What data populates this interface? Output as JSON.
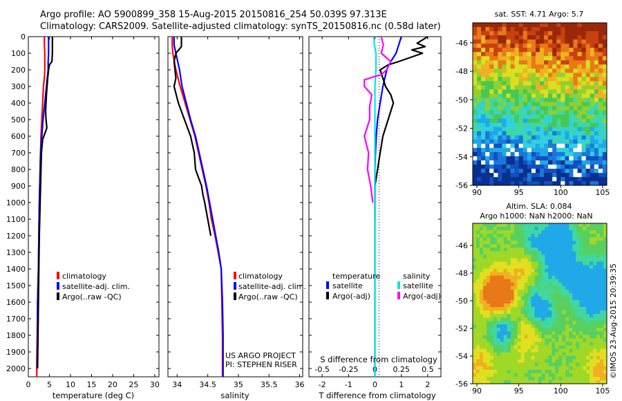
{
  "header": {
    "line1": "Argo profile: AO 5900899_358 15-Aug-2015 20150816_254 50.039S 97.313E",
    "line2": "Climatology: CARS2009. Satellite-adjusted climatology: synTS_20150816.nc (0.58d later)"
  },
  "colors": {
    "climatology": "#ff0000",
    "satellite_adj": "#0000ff",
    "argo": "#000000",
    "salinity_satellite": "#00e5e5",
    "salinity_argo": "#ff00ff"
  },
  "credits": {
    "project": "US ARGO PROJECT",
    "pi": "PI: STEPHEN RISER",
    "imos": "©IMOS 23-Aug-2015 20:39:35"
  },
  "legend_temp": [
    "climatology",
    "satellite-adj. clim.",
    "Argo(..raw -QC)"
  ],
  "legend_sal": [
    "climatology",
    "satellite-adj. clim.",
    "Argo(..raw -QC)"
  ],
  "legend_diff": {
    "col1_title": "temperature",
    "col2_title": "salinity",
    "col1": [
      "satellite",
      "Argo(-adj)"
    ],
    "col2": [
      "satellite",
      "Argo(-adj)"
    ]
  },
  "map_sst": {
    "title": "sat. SST: 4.71 Argo: 5.7",
    "yticks": [
      "-46",
      "-48",
      "-50",
      "-52",
      "-54",
      "-56"
    ],
    "xticks": [
      "90",
      "95",
      "100",
      "105"
    ]
  },
  "map_sla": {
    "title1": "Altim. SLA: 0.084",
    "title2": "Argo h1000: NaN h2000: NaN",
    "yticks": [
      "-46",
      "-48",
      "-50",
      "-52",
      "-54",
      "-56"
    ],
    "xticks": [
      "90",
      "95",
      "100",
      "105"
    ]
  },
  "chart_data": [
    {
      "type": "line",
      "title": "",
      "xlabel": "temperature (deg C)",
      "ylabel": "",
      "xlim": [
        0,
        31
      ],
      "ylim": [
        2050,
        0
      ],
      "xticks": [
        "0",
        "5",
        "10",
        "15",
        "20",
        "25",
        "30"
      ],
      "yticks": [
        "0",
        "100",
        "200",
        "300",
        "400",
        "500",
        "600",
        "700",
        "800",
        "900",
        "1000",
        "1100",
        "1200",
        "1300",
        "1400",
        "1500",
        "1600",
        "1700",
        "1800",
        "1900",
        "2000"
      ],
      "series": [
        {
          "name": "climatology",
          "color": "#ff0000",
          "x": [
            3.8,
            3.8,
            3.9,
            3.9,
            3.9,
            3.8,
            3.6,
            3.4,
            3.2,
            3.0,
            2.9,
            2.8,
            2.7,
            2.6,
            2.5,
            2.4,
            2.3,
            2.2,
            2.1,
            2.0,
            2.0
          ],
          "y": [
            0,
            50,
            100,
            150,
            200,
            250,
            300,
            400,
            500,
            600,
            700,
            800,
            900,
            1000,
            1200,
            1400,
            1500,
            1600,
            1800,
            1950,
            2050
          ]
        },
        {
          "name": "satellite-adj. clim.",
          "color": "#0000ff",
          "x": [
            4.8,
            4.8,
            4.8,
            4.7,
            4.7,
            4.5,
            4.3,
            3.9,
            3.5,
            3.2,
            2.9,
            2.8,
            2.7,
            2.6,
            2.5,
            2.4,
            2.3,
            2.2,
            2.2,
            2.1
          ],
          "y": [
            0,
            50,
            100,
            150,
            200,
            250,
            300,
            400,
            500,
            600,
            700,
            800,
            900,
            1000,
            1200,
            1400,
            1500,
            1600,
            1800,
            2000
          ]
        },
        {
          "name": "Argo(..raw -QC)",
          "color": "#000000",
          "x": [
            5.7,
            5.7,
            5.7,
            5.6,
            5.0,
            4.8,
            4.6,
            4.3,
            4.1,
            4.2,
            4.4,
            3.4,
            3.1,
            3.0,
            2.9,
            2.8,
            2.6,
            2.5,
            2.4,
            2.3,
            2.2
          ],
          "y": [
            0,
            50,
            100,
            150,
            170,
            200,
            250,
            350,
            450,
            500,
            550,
            620,
            700,
            800,
            900,
            1000,
            1200,
            1400,
            1600,
            1800,
            2000
          ]
        }
      ]
    },
    {
      "type": "line",
      "title": "",
      "xlabel": "salinity",
      "ylabel": "",
      "xlim": [
        33.85,
        36.05
      ],
      "ylim": [
        2050,
        0
      ],
      "xticks": [
        "34",
        "34.5",
        "35",
        "35.5",
        "36"
      ],
      "series": [
        {
          "name": "climatology",
          "color": "#ff0000",
          "x": [
            33.92,
            33.92,
            33.93,
            33.98,
            34.05,
            34.13,
            34.21,
            34.29,
            34.35,
            34.41,
            34.47,
            34.52,
            34.56,
            34.62,
            34.67,
            34.72,
            34.73,
            34.74,
            34.74
          ],
          "y": [
            0,
            50,
            100,
            200,
            300,
            400,
            500,
            600,
            700,
            800,
            900,
            1000,
            1100,
            1200,
            1300,
            1400,
            1600,
            1800,
            2050
          ]
        },
        {
          "name": "satellite-adj. clim.",
          "color": "#0000ff",
          "x": [
            33.95,
            33.95,
            33.98,
            34.04,
            34.08,
            34.15,
            34.22,
            34.3,
            34.36,
            34.42,
            34.48,
            34.53,
            34.58,
            34.63,
            34.68,
            34.72,
            34.74,
            34.75,
            34.75
          ],
          "y": [
            0,
            50,
            100,
            200,
            300,
            400,
            500,
            600,
            700,
            800,
            900,
            1000,
            1100,
            1200,
            1300,
            1400,
            1600,
            1800,
            2050
          ]
        },
        {
          "name": "Argo(..raw -QC)",
          "color": "#000000",
          "x": [
            34.07,
            34.07,
            33.98,
            33.95,
            33.98,
            33.95,
            34.02,
            34.12,
            34.22,
            34.28,
            34.3,
            34.35,
            34.4,
            34.42,
            34.45,
            34.5,
            34.55
          ],
          "y": [
            0,
            60,
            100,
            150,
            250,
            300,
            400,
            500,
            600,
            700,
            800,
            850,
            900,
            950,
            1000,
            1100,
            1200
          ]
        }
      ]
    },
    {
      "type": "line",
      "title": "",
      "xlabel": "T difference from climatology",
      "ylabel": "",
      "xlim": [
        -2.5,
        2.5
      ],
      "ylim": [
        2050,
        0
      ],
      "xticks": [
        "-2",
        "-1",
        "0",
        "1",
        "2"
      ],
      "x2label": "S difference from climatology",
      "x2lim": [
        -0.625,
        0.625
      ],
      "x2ticks": [
        "-0.5",
        "-0.25",
        "0",
        "0.25",
        "0.5"
      ],
      "series": [
        {
          "name": "temperature satellite",
          "color": "#0000ff",
          "x": [
            1.0,
            0.9,
            0.8,
            0.6,
            0.45,
            0.3,
            0.2,
            0.1,
            0.05,
            0.02,
            0.0,
            0.0,
            0.0,
            0.0,
            0.0
          ],
          "y": [
            0,
            50,
            100,
            150,
            200,
            300,
            400,
            500,
            600,
            700,
            800,
            1000,
            1400,
            1800,
            2050
          ]
        },
        {
          "name": "temperature Argo(-adj)",
          "color": "#000000",
          "x": [
            2.0,
            1.6,
            1.9,
            1.4,
            1.8,
            0.9,
            0.5,
            0.2,
            0.3,
            0.4,
            0.6,
            0.7,
            0.6,
            0.5,
            0.4,
            0.3,
            0.2,
            0.1,
            0.0,
            0.0,
            0.0
          ],
          "y": [
            0,
            40,
            60,
            80,
            100,
            150,
            170,
            200,
            250,
            300,
            350,
            400,
            450,
            500,
            550,
            600,
            700,
            800,
            900,
            1000,
            1100
          ]
        },
        {
          "name": "salinity satellite",
          "color": "#00e5e5",
          "x": [
            -0.01,
            -0.005,
            0.01,
            0.01,
            0.0,
            0.0,
            0.0,
            0.0,
            0.0,
            0.0,
            0.0
          ],
          "y": [
            0,
            50,
            100,
            200,
            300,
            500,
            700,
            1000,
            1400,
            1800,
            2050
          ]
        },
        {
          "name": "salinity Argo(-adj)",
          "color": "#ff00ff",
          "x": [
            0.06,
            0.08,
            0.06,
            0.15,
            0.11,
            0.06,
            0.0,
            -0.1,
            -0.1,
            -0.03,
            -0.05,
            -0.05,
            -0.1,
            -0.06,
            -0.07,
            -0.04,
            -0.02
          ],
          "y": [
            0,
            50,
            100,
            150,
            200,
            230,
            240,
            260,
            300,
            350,
            420,
            500,
            600,
            700,
            800,
            900,
            1000
          ]
        }
      ]
    }
  ]
}
